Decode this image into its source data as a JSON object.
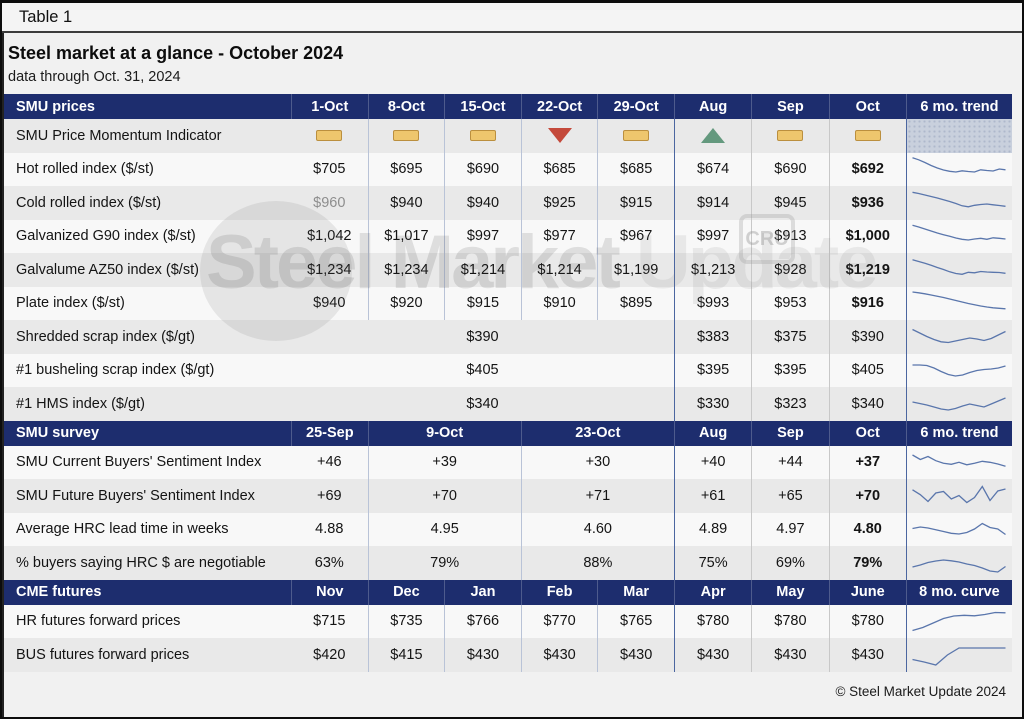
{
  "window": {
    "tag": "Table 1",
    "footer": "© Steel Market Update 2024"
  },
  "title": "Steel market at a glance - October 2024",
  "subtitle": "data through Oct. 31, 2024",
  "watermark": {
    "part1": "Steel Market ",
    "part2": "Update",
    "badge": "CRU"
  },
  "colors": {
    "header_navy": "#1d2d6e",
    "sparkline": "#5a76ac",
    "divider_blue": "#4b66a0",
    "divider_light_blue": "#b9c3d7",
    "divider_gray": "#c8c8c8",
    "momentum_flat": "#eec66d",
    "momentum_up": "#64997e",
    "momentum_down": "#c4493a",
    "row_shade": "#e9e9e9",
    "row_light": "#f8f8f8"
  },
  "sections": [
    {
      "id": "prices",
      "label": "SMU prices",
      "columns": [
        "1-Oct",
        "8-Oct",
        "15-Oct",
        "22-Oct",
        "29-Oct",
        "Aug",
        "Sep",
        "Oct"
      ],
      "col_spans": [
        1,
        1,
        1,
        1,
        1,
        1,
        1,
        1
      ],
      "trend_label": "6 mo. trend",
      "rows": [
        {
          "type": "momentum",
          "label": "SMU Price Momentum Indicator",
          "indicators": [
            "flat",
            "flat",
            "flat",
            "down",
            "flat",
            "up",
            "flat",
            "flat"
          ]
        },
        {
          "type": "price",
          "label": "Hot rolled index ($/st)",
          "weekly": [
            "$705",
            "$695",
            "$690",
            "$685",
            "$685"
          ],
          "monthly": [
            "$674",
            "$690",
            "$692"
          ],
          "bold_oct": true,
          "trend": [
            95,
            87,
            76,
            64,
            54,
            46,
            41,
            38,
            43,
            40,
            38,
            47,
            44,
            42,
            50,
            47
          ]
        },
        {
          "type": "price",
          "label": "Cold rolled index ($/st)",
          "gray_first": true,
          "weekly": [
            "$960",
            "$940",
            "$940",
            "$925",
            "$915"
          ],
          "monthly": [
            "$914",
            "$945",
            "$936"
          ],
          "bold_oct": true,
          "trend": [
            93,
            88,
            82,
            76,
            70,
            63,
            56,
            48,
            39,
            35,
            41,
            44,
            46,
            43,
            40,
            37
          ]
        },
        {
          "type": "price",
          "label": "Galvanized G90 index ($/st)",
          "weekly": [
            "$1,042",
            "$1,017",
            "$997",
            "$977",
            "$967"
          ],
          "monthly": [
            "$997",
            "$913",
            "$1,000"
          ],
          "bold_oct": true,
          "trend": [
            93,
            86,
            78,
            70,
            62,
            55,
            49,
            42,
            37,
            34,
            38,
            41,
            37,
            43,
            41,
            38
          ]
        },
        {
          "type": "price",
          "label": "Galvalume AZ50 index ($/st)",
          "weekly": [
            "$1,234",
            "$1,234",
            "$1,214",
            "$1,214",
            "$1,199"
          ],
          "monthly": [
            "$1,213",
            "$928",
            "$1,219"
          ],
          "bold_oct": true,
          "trend": [
            91,
            84,
            77,
            69,
            60,
            52,
            43,
            36,
            33,
            41,
            39,
            44,
            42,
            41,
            40,
            37
          ]
        },
        {
          "type": "price",
          "label": "Plate index ($/st)",
          "weekly": [
            "$940",
            "$920",
            "$915",
            "$910",
            "$895"
          ],
          "monthly": [
            "$993",
            "$953",
            "$916"
          ],
          "bold_oct": true,
          "trend": [
            94,
            91,
            87,
            82,
            77,
            72,
            66,
            60,
            54,
            48,
            43,
            38,
            34,
            31,
            29,
            27
          ]
        },
        {
          "type": "scrap",
          "label": "Shredded scrap index ($/gt)",
          "merged": "$390",
          "monthly": [
            "$383",
            "$375",
            "$390"
          ],
          "bold_oct": false,
          "trend": [
            80,
            66,
            52,
            40,
            31,
            28,
            34,
            40,
            46,
            42,
            36,
            44,
            58,
            72
          ]
        },
        {
          "type": "scrap",
          "label": "#1 busheling scrap index ($/gt)",
          "merged": "$405",
          "monthly": [
            "$395",
            "$395",
            "$405"
          ],
          "bold_oct": false,
          "trend": [
            70,
            70,
            68,
            58,
            44,
            32,
            26,
            30,
            40,
            48,
            52,
            54,
            58,
            66
          ]
        },
        {
          "type": "scrap",
          "label": "#1 HMS index ($/gt)",
          "merged": "$340",
          "monthly": [
            "$330",
            "$323",
            "$340"
          ],
          "bold_oct": false,
          "trend": [
            58,
            52,
            46,
            38,
            30,
            26,
            32,
            42,
            50,
            44,
            38,
            50,
            62,
            74
          ]
        }
      ]
    },
    {
      "id": "survey",
      "label": "SMU survey",
      "columns": [
        "25-Sep",
        "9-Oct",
        "23-Oct",
        "Aug",
        "Sep",
        "Oct"
      ],
      "col_spans": [
        1,
        2,
        2,
        1,
        1,
        1
      ],
      "trend_label": "6 mo. trend",
      "rows": [
        {
          "type": "survey",
          "label": "SMU Current Buyers' Sentiment Index",
          "values": [
            "+46",
            "+39",
            "+30"
          ],
          "monthly": [
            "+40",
            "+44",
            "+37"
          ],
          "bold_oct": true,
          "trend": [
            78,
            60,
            72,
            55,
            45,
            41,
            49,
            39,
            45,
            53,
            49,
            42,
            33
          ]
        },
        {
          "type": "survey",
          "label": "SMU Future Buyers' Sentiment Index",
          "values": [
            "+69",
            "+70",
            "+71"
          ],
          "monthly": [
            "+61",
            "+65",
            "+70"
          ],
          "bold_oct": true,
          "trend": [
            75,
            55,
            28,
            62,
            68,
            38,
            52,
            24,
            44,
            88,
            32,
            70,
            78
          ]
        },
        {
          "type": "survey",
          "label": "Average HRC lead time in weeks",
          "values": [
            "4.88",
            "4.95",
            "4.60"
          ],
          "monthly": [
            "4.89",
            "4.97",
            "4.80"
          ],
          "bold_oct": true,
          "trend": [
            52,
            58,
            54,
            47,
            40,
            33,
            30,
            36,
            50,
            72,
            56,
            50,
            28
          ]
        },
        {
          "type": "survey",
          "label": "% buyers saying HRC $ are negotiable",
          "values": [
            "63%",
            "79%",
            "88%"
          ],
          "monthly": [
            "75%",
            "69%",
            "79%"
          ],
          "bold_oct": true,
          "trend": [
            34,
            42,
            52,
            58,
            62,
            59,
            54,
            46,
            40,
            30,
            18,
            14,
            36
          ]
        }
      ]
    },
    {
      "id": "futures",
      "label": "CME futures",
      "columns": [
        "Nov",
        "Dec",
        "Jan",
        "Feb",
        "Mar",
        "Apr",
        "May",
        "June"
      ],
      "col_spans": [
        1,
        1,
        1,
        1,
        1,
        1,
        1,
        1
      ],
      "trend_label": "8 mo. curve",
      "rows": [
        {
          "type": "futures",
          "label": "HR futures forward prices",
          "values": [
            "$715",
            "$735",
            "$766",
            "$770",
            "$765",
            "$780",
            "$780",
            "$780"
          ],
          "trend": [
            12,
            24,
            42,
            60,
            70,
            73,
            71,
            76,
            84,
            83
          ]
        },
        {
          "type": "futures",
          "label": "BUS futures forward prices",
          "values": [
            "$420",
            "$415",
            "$430",
            "$430",
            "$430",
            "$430",
            "$430",
            "$430"
          ],
          "trend": [
            32,
            22,
            10,
            50,
            78,
            78,
            78,
            78,
            78
          ]
        }
      ]
    }
  ]
}
